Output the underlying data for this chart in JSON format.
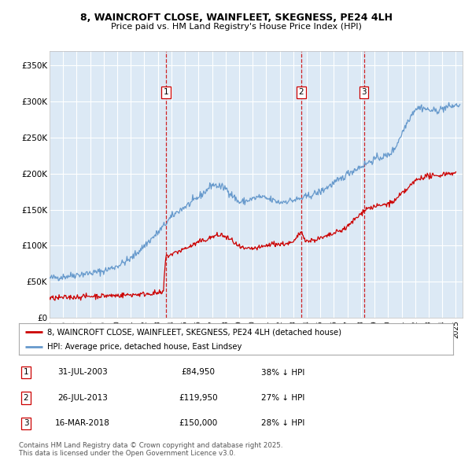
{
  "title1": "8, WAINCROFT CLOSE, WAINFLEET, SKEGNESS, PE24 4LH",
  "title2": "Price paid vs. HM Land Registry's House Price Index (HPI)",
  "bg_color": "#dce9f5",
  "grid_color": "#ffffff",
  "sale1": {
    "date_num": 2003.58,
    "price": 84950,
    "label": "1"
  },
  "sale2": {
    "date_num": 2013.57,
    "price": 119950,
    "label": "2"
  },
  "sale3": {
    "date_num": 2018.21,
    "price": 150000,
    "label": "3"
  },
  "legend_line1": "8, WAINCROFT CLOSE, WAINFLEET, SKEGNESS, PE24 4LH (detached house)",
  "legend_line2": "HPI: Average price, detached house, East Lindsey",
  "table": [
    [
      "1",
      "31-JUL-2003",
      "£84,950",
      "38% ↓ HPI"
    ],
    [
      "2",
      "26-JUL-2013",
      "£119,950",
      "27% ↓ HPI"
    ],
    [
      "3",
      "16-MAR-2018",
      "£150,000",
      "28% ↓ HPI"
    ]
  ],
  "footer": "Contains HM Land Registry data © Crown copyright and database right 2025.\nThis data is licensed under the Open Government Licence v3.0.",
  "red_color": "#cc0000",
  "blue_color": "#6699cc",
  "xmin": 1995.0,
  "xmax": 2025.5,
  "ymin": 0,
  "ymax": 370000,
  "yticks": [
    0,
    50000,
    100000,
    150000,
    200000,
    250000,
    300000,
    350000
  ],
  "ylabels": [
    "£0",
    "£50K",
    "£100K",
    "£150K",
    "£200K",
    "£250K",
    "£300K",
    "£350K"
  ]
}
